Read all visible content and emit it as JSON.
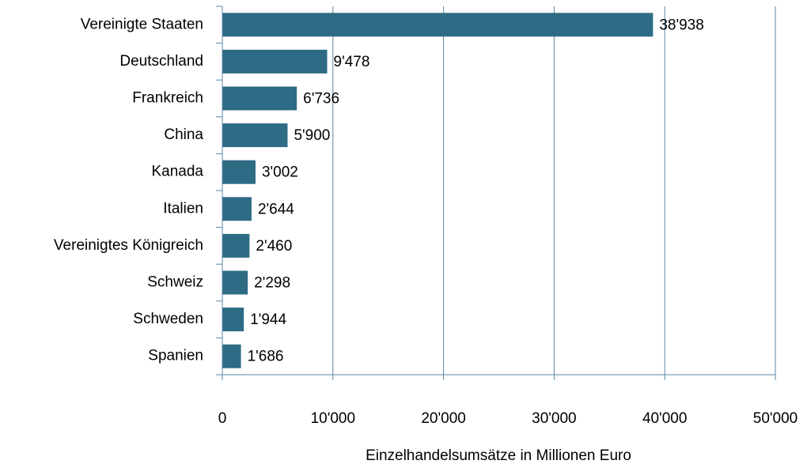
{
  "chart_data": {
    "type": "bar",
    "orientation": "horizontal",
    "categories": [
      "Vereinigte Staaten",
      "Deutschland",
      "Frankreich",
      "China",
      "Kanada",
      "Italien",
      "Vereinigtes Königreich",
      "Schweiz",
      "Schweden",
      "Spanien"
    ],
    "values": [
      38938,
      9478,
      6736,
      5900,
      3002,
      2644,
      2460,
      2298,
      1944,
      1686
    ],
    "value_labels": [
      "38'938",
      "9'478",
      "6'736",
      "5'900",
      "3'002",
      "2'644",
      "2'460",
      "2'298",
      "1'944",
      "1'686"
    ],
    "color": "#2e6b85",
    "xlim": [
      0,
      50000
    ],
    "xticks": [
      0,
      {
        "value": 10000,
        "label": "10'000"
      },
      {
        "value": 20000,
        "label": "20'000"
      },
      {
        "value": 30000,
        "label": "30'000"
      },
      {
        "value": 40000,
        "label": "40'000"
      },
      {
        "value": 50000,
        "label": "50'000"
      }
    ],
    "xlabel": "Einzelhandelsumsätze in Millionen Euro",
    "grid": true
  }
}
